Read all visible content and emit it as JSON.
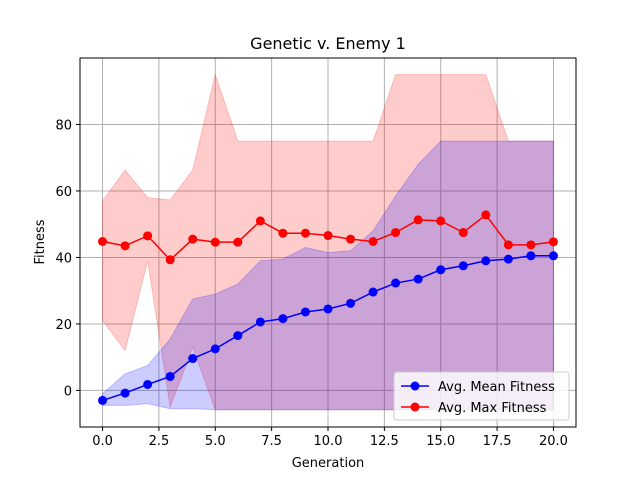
{
  "chart_data": {
    "type": "line",
    "title": "Genetic v. Enemy 1",
    "xlabel": "Generation",
    "ylabel": "Fitness",
    "xlim": [
      -1.0,
      21.0
    ],
    "ylim": [
      -11,
      100
    ],
    "xticks": [
      0.0,
      2.5,
      5.0,
      7.5,
      10.0,
      12.5,
      15.0,
      17.5,
      20.0
    ],
    "yticks": [
      0,
      20,
      40,
      60,
      80
    ],
    "grid": true,
    "legend_position": "lower-right",
    "x": [
      0,
      1,
      2,
      3,
      4,
      5,
      6,
      7,
      8,
      9,
      10,
      11,
      12,
      13,
      14,
      15,
      16,
      17,
      18,
      19,
      20
    ],
    "series": [
      {
        "name": "Avg. Mean Fitness",
        "color": "#0000ff",
        "fill_color": "#0000ff",
        "values": [
          -3.0,
          -0.8,
          1.8,
          4.2,
          9.6,
          12.5,
          16.5,
          20.6,
          21.6,
          23.6,
          24.5,
          26.2,
          29.6,
          32.3,
          33.5,
          36.3,
          37.5,
          39.0,
          39.5,
          40.5,
          40.5
        ],
        "band_low": [
          -4.5,
          -4.5,
          -4.0,
          -5.5,
          -5.5,
          -5.8,
          -5.8,
          -5.8,
          -5.8,
          -5.8,
          -5.8,
          -5.8,
          -5.8,
          -5.8,
          -5.8,
          -5.8,
          -5.8,
          -5.8,
          -5.8,
          -5.8,
          -5.8
        ],
        "band_high": [
          -1.0,
          5.0,
          7.5,
          15.5,
          27.5,
          29.0,
          32.0,
          39.0,
          39.5,
          43.0,
          41.5,
          42.0,
          48.0,
          58.5,
          68.0,
          75.0,
          75.0,
          75.0,
          75.0,
          75.0,
          75.0
        ]
      },
      {
        "name": "Avg. Max Fitness",
        "color": "#ff0000",
        "fill_color": "#ff0000",
        "values": [
          44.8,
          43.5,
          46.5,
          39.3,
          45.5,
          44.6,
          44.6,
          51.0,
          47.3,
          47.3,
          46.6,
          45.5,
          44.8,
          47.5,
          51.3,
          51.0,
          47.5,
          52.8,
          43.8,
          43.8,
          44.7
        ],
        "band_low": [
          21.0,
          12.0,
          39.0,
          -5.0,
          13.0,
          -5.8,
          -5.8,
          -5.8,
          -5.8,
          -5.8,
          -5.8,
          -5.8,
          -5.8,
          -5.8,
          -5.8,
          -5.8,
          -5.8,
          -5.8,
          -5.8,
          -5.8,
          -5.8
        ],
        "band_high": [
          57.0,
          66.3,
          58.0,
          57.3,
          66.3,
          95.0,
          75.0,
          75.0,
          75.0,
          75.0,
          75.0,
          75.0,
          75.0,
          95.0,
          95.0,
          95.0,
          95.0,
          95.0,
          75.0,
          75.0,
          75.0
        ]
      }
    ]
  }
}
